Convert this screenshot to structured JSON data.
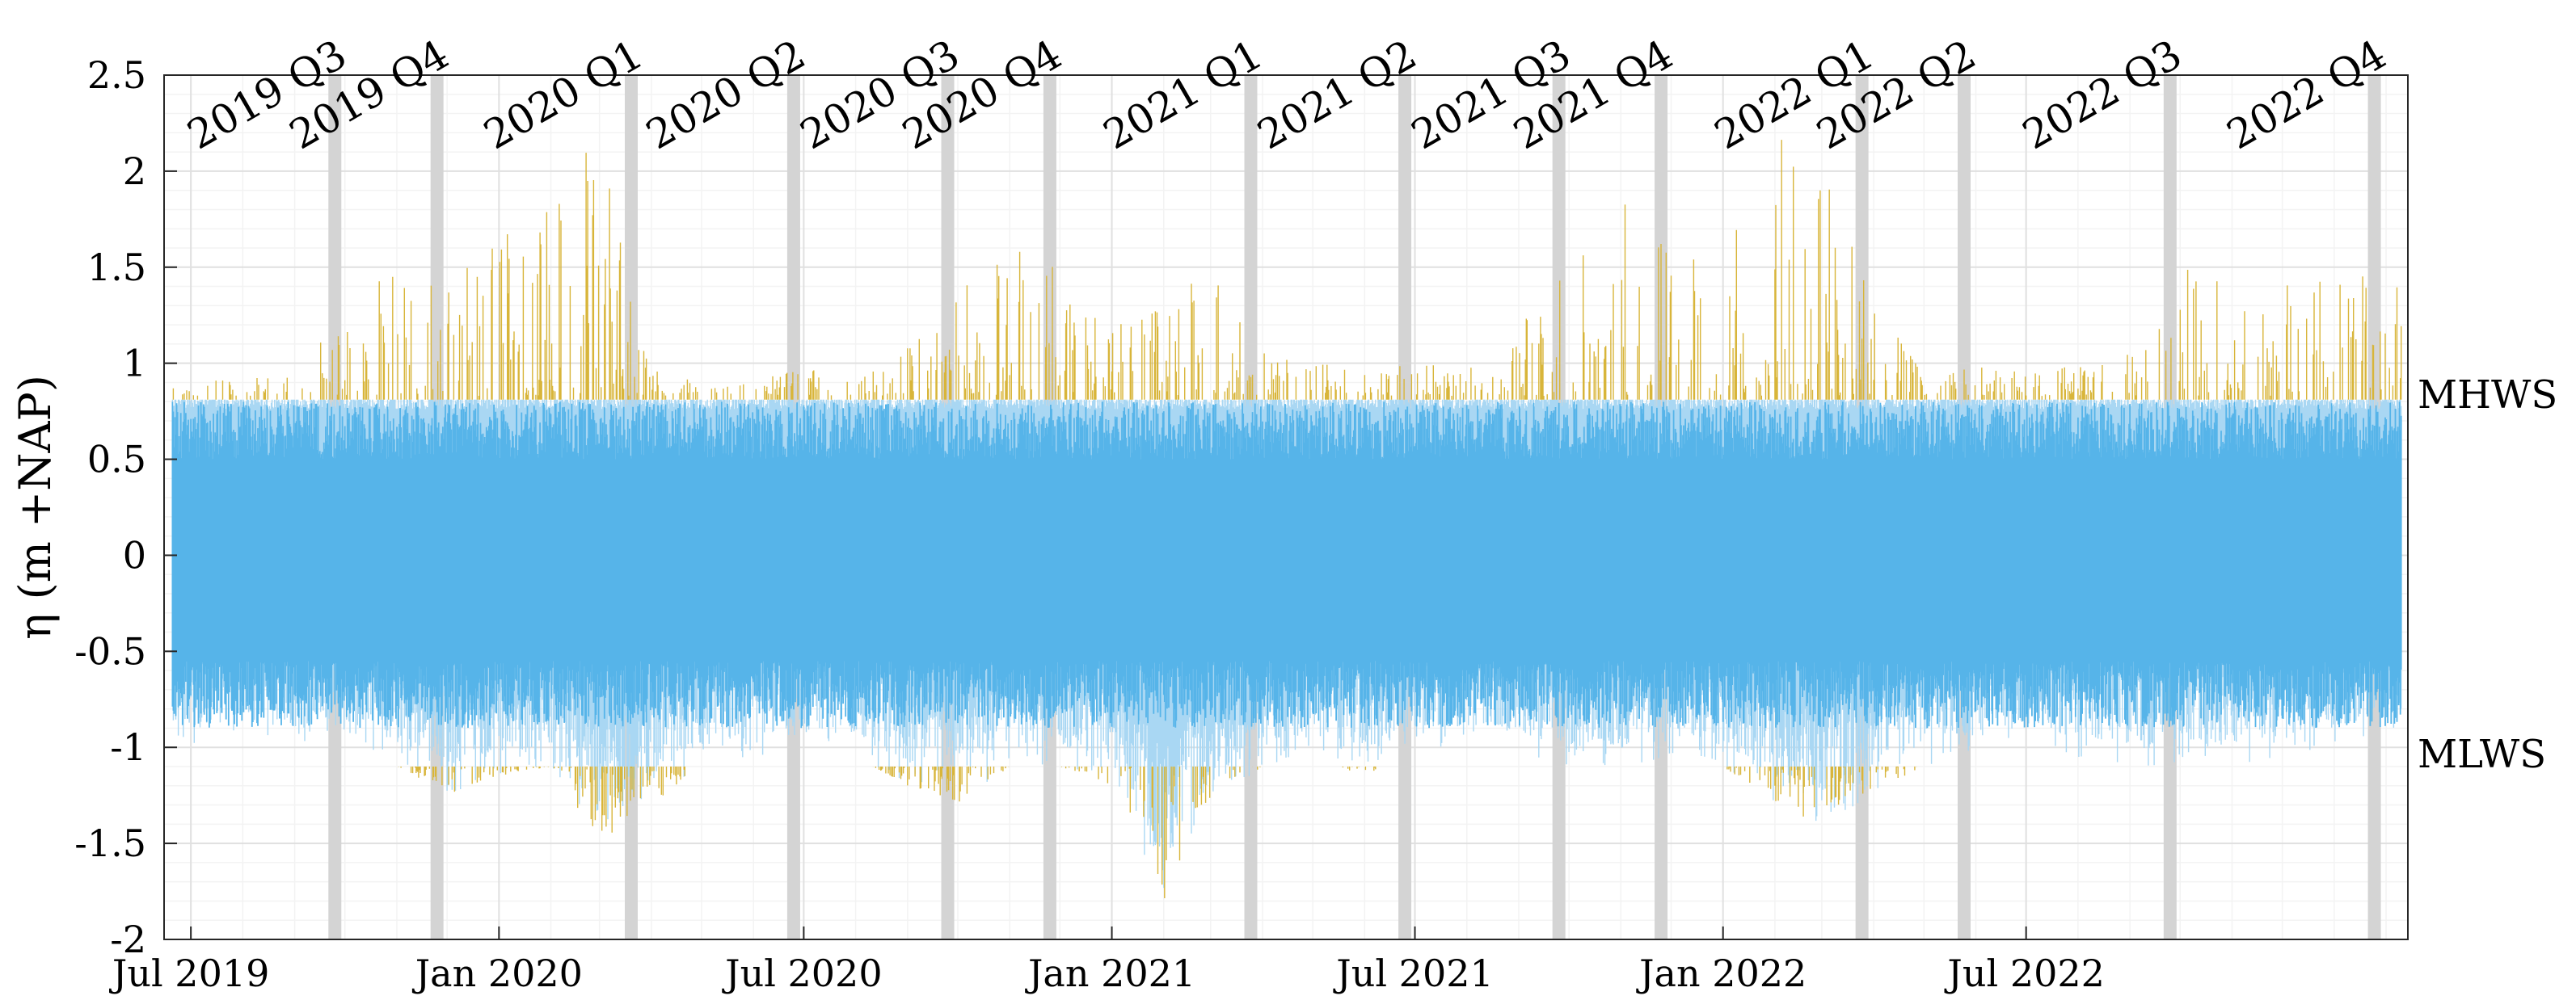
{
  "chart_data": {
    "type": "area",
    "title": "",
    "xlabel": "",
    "ylabel": "η (m +NAP)",
    "xlim": [
      "2019-06-15",
      "2023-02-14"
    ],
    "ylim": [
      -2,
      2.5
    ],
    "y_ticks": [
      -2,
      -1.5,
      -1,
      -0.5,
      0,
      0.5,
      1,
      1.5,
      2,
      2.5
    ],
    "y_tick_labels": [
      "-2",
      "-1.5",
      "-1",
      "-0.5",
      "0",
      "0.5",
      "1",
      "1.5",
      "2",
      "2.5"
    ],
    "x_ticks": [
      "2019-07-01",
      "2020-01-01",
      "2020-07-01",
      "2021-01-01",
      "2021-07-01",
      "2022-01-01",
      "2022-07-01"
    ],
    "x_tick_labels": [
      "Jul 2019",
      "Jan 2020",
      "Jul 2020",
      "Jan 2021",
      "Jul 2021",
      "Jan 2022",
      "Jul 2022"
    ],
    "grid": true,
    "reference_levels": [
      {
        "label": "MHWS",
        "value": 0.81
      },
      {
        "label": "MLWS",
        "value": -1.1
      }
    ],
    "quarter_markers": [
      {
        "label": "2019 Q3",
        "date": "2019-09-25"
      },
      {
        "label": "2019 Q4",
        "date": "2019-11-25"
      },
      {
        "label": "2020 Q1",
        "date": "2020-03-20"
      },
      {
        "label": "2020 Q2",
        "date": "2020-06-25"
      },
      {
        "label": "2020 Q3",
        "date": "2020-09-25"
      },
      {
        "label": "2020 Q4",
        "date": "2020-11-25"
      },
      {
        "label": "2021 Q1",
        "date": "2021-03-25"
      },
      {
        "label": "2021 Q2",
        "date": "2021-06-25"
      },
      {
        "label": "2021 Q3",
        "date": "2021-09-25"
      },
      {
        "label": "2021 Q4",
        "date": "2021-11-25"
      },
      {
        "label": "2022 Q1",
        "date": "2022-03-25"
      },
      {
        "label": "2022 Q2",
        "date": "2022-05-25"
      },
      {
        "label": "2022 Q3",
        "date": "2022-09-25"
      },
      {
        "label": "2022 Q4",
        "date": "2023-01-25"
      }
    ],
    "series": [
      {
        "color": "#56b4e9",
        "x": [
          "2019-07-01",
          "2019-08-01",
          "2019-09-01",
          "2019-10-01",
          "2019-11-01",
          "2019-12-01",
          "2020-01-01",
          "2020-02-01",
          "2020-03-01",
          "2020-04-01",
          "2020-05-01",
          "2020-06-01",
          "2020-07-01",
          "2020-08-01",
          "2020-09-01",
          "2020-10-01",
          "2020-11-01",
          "2020-12-01",
          "2021-01-01",
          "2021-02-01",
          "2021-03-01",
          "2021-04-01",
          "2021-05-01",
          "2021-06-01",
          "2021-07-01",
          "2021-08-01",
          "2021-09-01",
          "2021-10-01",
          "2021-11-01",
          "2021-12-01",
          "2022-01-01",
          "2022-02-01",
          "2022-03-01",
          "2022-04-01",
          "2022-05-01",
          "2022-06-01",
          "2022-07-01",
          "2022-08-01",
          "2022-09-01",
          "2022-10-01",
          "2022-11-01",
          "2022-12-01",
          "2023-01-01",
          "2023-02-01"
        ],
        "y_max": [
          0.9,
          0.95,
          0.95,
          1.3,
          1.5,
          1.4,
          1.7,
          1.9,
          2.2,
          1.0,
          0.9,
          0.9,
          1.0,
          0.9,
          1.1,
          1.4,
          1.6,
          1.5,
          1.2,
          1.3,
          1.6,
          1.1,
          1.0,
          1.0,
          1.0,
          1.0,
          1.2,
          1.5,
          1.9,
          1.6,
          1.5,
          2.3,
          2.1,
          1.3,
          1.0,
          1.0,
          0.95,
          1.0,
          1.05,
          1.5,
          1.5,
          1.4,
          1.45,
          1.5
        ],
        "y_min": [
          -1.0,
          -0.9,
          -1.0,
          -0.95,
          -1.1,
          -1.25,
          -1.15,
          -1.1,
          -1.5,
          -1.3,
          -1.1,
          -1.05,
          -1.0,
          -1.05,
          -1.2,
          -1.3,
          -1.1,
          -1.1,
          -1.2,
          -1.8,
          -1.3,
          -1.1,
          -1.05,
          -1.15,
          -1.0,
          -1.0,
          -1.05,
          -1.1,
          -1.1,
          -1.05,
          -1.1,
          -1.3,
          -1.4,
          -1.25,
          -1.1,
          -1.05,
          -1.0,
          -1.05,
          -1.1,
          -1.1,
          -1.1,
          -1.05,
          -1.0,
          -0.9
        ]
      }
    ]
  }
}
